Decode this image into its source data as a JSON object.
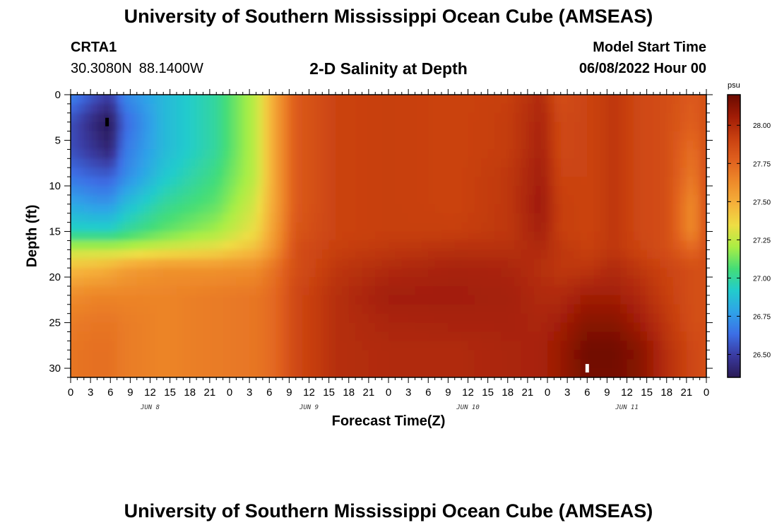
{
  "header": {
    "title": "University of Southern Mississippi Ocean Cube (AMSEAS)",
    "station_id": "CRTA1",
    "latitude": "30.3080N",
    "longitude": "88.1400W",
    "subtitle": "2-D Salinity at Depth",
    "model_start_label": "Model Start Time",
    "model_start_value": "06/08/2022 Hour 00"
  },
  "footer": {
    "title": "University of Southern Mississippi Ocean Cube (AMSEAS)"
  },
  "chart_data": {
    "type": "heatmap",
    "title": "2-D Salinity at Depth",
    "xlabel": "Forecast Time(Z)",
    "ylabel": "Depth (ft)",
    "x_hours_range": [
      0,
      96
    ],
    "xlim": [
      0,
      96
    ],
    "ylim": [
      31,
      0
    ],
    "y_ticks": [
      0,
      5,
      10,
      15,
      20,
      25,
      30
    ],
    "x_tick_labels": [
      "0",
      "3",
      "6",
      "9",
      "12",
      "15",
      "18",
      "21",
      "0",
      "3",
      "6",
      "9",
      "12",
      "15",
      "18",
      "21",
      "0",
      "3",
      "6",
      "9",
      "12",
      "15",
      "18",
      "21",
      "0",
      "3",
      "6",
      "9",
      "12",
      "15",
      "18",
      "21",
      "0"
    ],
    "day_labels": [
      {
        "label": "JUN 8",
        "hour": 12
      },
      {
        "label": "JUN 9",
        "hour": 36
      },
      {
        "label": "JUN 10",
        "hour": 60
      },
      {
        "label": "JUN 11",
        "hour": 84
      }
    ],
    "colorbar": {
      "unit": "psu",
      "min": 26.35,
      "max": 28.2,
      "ticks": [
        "26.50",
        "26.75",
        "27.00",
        "27.25",
        "27.50",
        "27.75",
        "28.00"
      ],
      "colors": [
        "#2a1a55",
        "#3a3aa0",
        "#3c6fe6",
        "#2fa2e8",
        "#22cccc",
        "#44dd77",
        "#aaee44",
        "#eedd44",
        "#f5b03a",
        "#ee8a2a",
        "#e0601e",
        "#c84010",
        "#a01c06",
        "#6a0a00"
      ]
    },
    "sample_grid": {
      "hours": [
        0,
        4,
        6,
        8,
        14,
        22,
        28,
        31,
        34,
        40,
        48,
        58,
        66,
        71,
        74,
        78,
        82,
        86,
        90,
        94,
        96
      ],
      "depths_ft": [
        0,
        3,
        6,
        9,
        12,
        15,
        17,
        19,
        22,
        25,
        28,
        31
      ],
      "values_psu": [
        [
          26.7,
          26.55,
          26.5,
          26.7,
          26.85,
          27.0,
          27.25,
          27.55,
          27.8,
          27.9,
          27.92,
          27.9,
          27.92,
          28.0,
          27.85,
          27.9,
          27.95,
          27.88,
          27.85,
          27.8,
          27.85
        ],
        [
          26.55,
          26.4,
          26.35,
          26.6,
          26.85,
          27.0,
          27.25,
          27.55,
          27.8,
          27.9,
          27.92,
          27.9,
          27.93,
          28.02,
          27.88,
          27.9,
          27.95,
          27.88,
          27.85,
          27.78,
          27.85
        ],
        [
          26.55,
          26.45,
          26.4,
          26.65,
          26.85,
          27.0,
          27.25,
          27.55,
          27.8,
          27.9,
          27.92,
          27.9,
          27.93,
          28.03,
          27.88,
          27.9,
          27.95,
          27.88,
          27.85,
          27.72,
          27.85
        ],
        [
          26.65,
          26.6,
          26.6,
          26.7,
          26.9,
          27.05,
          27.25,
          27.55,
          27.8,
          27.9,
          27.92,
          27.9,
          27.95,
          28.05,
          27.9,
          27.9,
          27.95,
          27.88,
          27.85,
          27.68,
          27.85
        ],
        [
          26.8,
          26.75,
          26.75,
          26.85,
          27.0,
          27.1,
          27.3,
          27.55,
          27.8,
          27.9,
          27.92,
          27.9,
          27.95,
          28.06,
          27.92,
          27.9,
          27.95,
          27.88,
          27.85,
          27.62,
          27.85
        ],
        [
          26.95,
          26.95,
          26.95,
          27.0,
          27.1,
          27.2,
          27.35,
          27.58,
          27.82,
          27.9,
          27.92,
          27.92,
          27.95,
          28.04,
          27.92,
          27.9,
          27.95,
          27.88,
          27.85,
          27.62,
          27.85
        ],
        [
          27.25,
          27.25,
          27.25,
          27.25,
          27.3,
          27.35,
          27.45,
          27.62,
          27.85,
          27.92,
          27.95,
          27.98,
          27.98,
          28.0,
          27.95,
          27.92,
          27.95,
          27.9,
          27.85,
          27.75,
          27.85
        ],
        [
          27.45,
          27.48,
          27.5,
          27.55,
          27.6,
          27.6,
          27.62,
          27.72,
          27.85,
          27.95,
          28.0,
          28.03,
          28.02,
          27.98,
          27.95,
          27.95,
          28.0,
          27.95,
          27.9,
          27.85,
          27.85
        ],
        [
          27.62,
          27.65,
          27.65,
          27.65,
          27.65,
          27.68,
          27.7,
          27.75,
          27.88,
          27.98,
          28.05,
          28.05,
          28.04,
          28.0,
          28.0,
          28.05,
          28.05,
          28.0,
          27.92,
          27.85,
          27.85
        ],
        [
          27.68,
          27.7,
          27.7,
          27.68,
          27.65,
          27.68,
          27.7,
          27.75,
          27.88,
          27.98,
          28.02,
          28.03,
          28.03,
          28.02,
          28.05,
          28.12,
          28.12,
          28.05,
          27.95,
          27.85,
          27.85
        ],
        [
          27.7,
          27.72,
          27.72,
          27.68,
          27.65,
          27.68,
          27.7,
          27.75,
          27.88,
          27.98,
          28.0,
          28.0,
          28.02,
          28.03,
          28.08,
          28.18,
          28.18,
          28.12,
          27.98,
          27.88,
          27.85
        ],
        [
          27.7,
          27.72,
          27.72,
          27.68,
          27.65,
          27.68,
          27.7,
          27.75,
          27.88,
          27.98,
          28.0,
          28.0,
          28.02,
          28.03,
          28.08,
          28.17,
          28.17,
          28.12,
          27.98,
          27.88,
          27.85
        ]
      ]
    },
    "markers": [
      {
        "hour": 5.5,
        "depth_ft": 3,
        "color": "#000000"
      },
      {
        "hour": 78,
        "depth_ft": 30,
        "color": "#ffffff"
      }
    ]
  }
}
